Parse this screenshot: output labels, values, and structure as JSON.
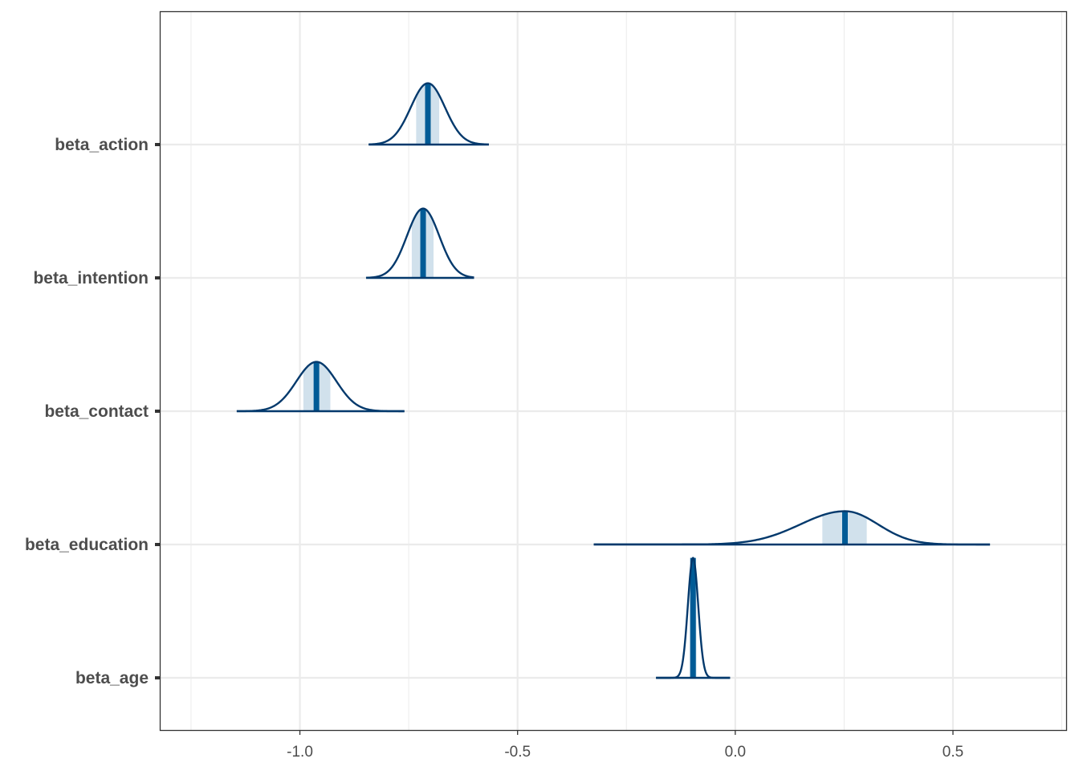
{
  "chart_data": {
    "type": "area",
    "title": "",
    "xlabel": "",
    "ylabel": "",
    "xlim": [
      -1.32,
      0.76
    ],
    "x_ticks": [
      -1.0,
      -0.5,
      0.0,
      0.5
    ],
    "x_tick_labels": [
      "-1.0",
      "-0.5",
      "0.0",
      "0.5"
    ],
    "grid": true,
    "legend": "none",
    "colors": {
      "outline": "#03396c",
      "median": "#005b96",
      "interval_fill": "#d1e1ec",
      "grid": "#ebebeb",
      "panel_border": "#333333"
    },
    "series": [
      {
        "name": "beta_action",
        "median": -0.706,
        "lo": -0.733,
        "hi": -0.68,
        "xmin": -0.842,
        "xmax": -0.566,
        "peak": 0.46
      },
      {
        "name": "beta_intention",
        "median": -0.717,
        "lo": -0.743,
        "hi": -0.693,
        "xmin": -0.848,
        "xmax": -0.6,
        "peak": 0.52
      },
      {
        "name": "beta_contact",
        "median": -0.962,
        "lo": -0.992,
        "hi": -0.93,
        "xmin": -1.145,
        "xmax": -0.76,
        "peak": 0.37
      },
      {
        "name": "beta_education",
        "median": 0.252,
        "lo": 0.2,
        "hi": 0.302,
        "xmin": -0.325,
        "xmax": 0.585,
        "peak": 0.25
      },
      {
        "name": "beta_age",
        "median": -0.097,
        "lo": -0.105,
        "hi": -0.089,
        "xmin": -0.182,
        "xmax": -0.012,
        "peak": 0.9
      }
    ]
  }
}
